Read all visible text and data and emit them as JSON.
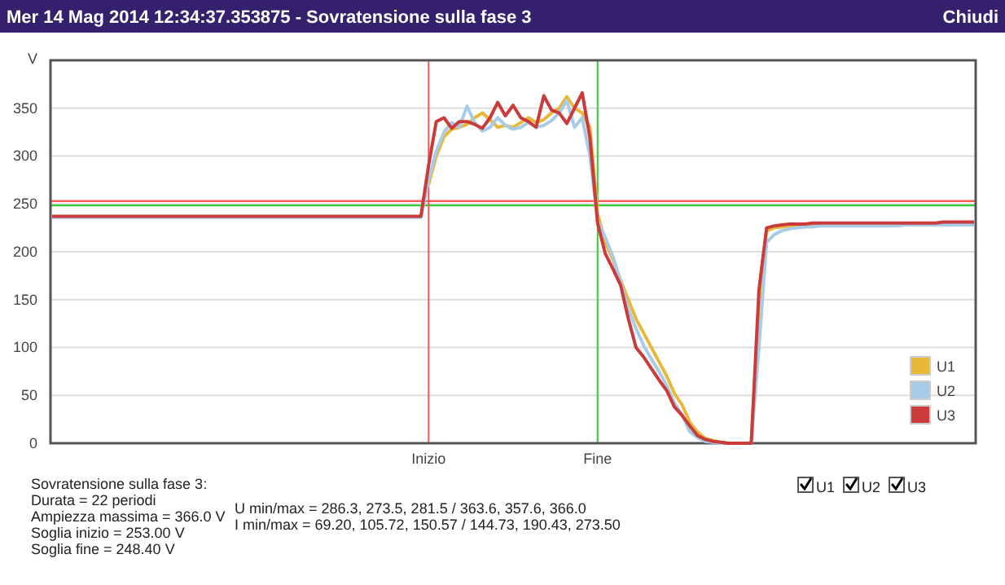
{
  "chart_data": {
    "type": "line",
    "title": "Mer 14 Mag 2014 12:34:37.353875 - Sovratensione sulla fase 3",
    "ylabel": "V",
    "categories": [
      null,
      null,
      null,
      null,
      null,
      null,
      null,
      null,
      null,
      null,
      null,
      null,
      null,
      null,
      null,
      null,
      null,
      null,
      null,
      null,
      null,
      null,
      null,
      null,
      null,
      null,
      null,
      null,
      null,
      null,
      null,
      null,
      null,
      null,
      null,
      null,
      null,
      null,
      null,
      null,
      null,
      null,
      null,
      null,
      null,
      null,
      null,
      null,
      null,
      "Inizio",
      null,
      null,
      null,
      null,
      null,
      null,
      null,
      null,
      null,
      null,
      null,
      null,
      null,
      null,
      null,
      null,
      null,
      null,
      null,
      null,
      null,
      "Fine",
      null,
      null,
      null,
      null,
      null,
      null,
      null,
      null,
      null,
      null,
      null,
      null,
      null,
      null,
      null,
      null,
      null,
      null,
      null,
      null,
      null,
      null,
      null,
      null,
      null,
      null,
      null,
      null,
      null,
      null,
      null,
      null,
      null,
      null,
      null,
      null,
      null,
      null,
      null,
      null,
      null,
      null,
      null,
      null,
      null,
      null,
      null,
      null,
      null
    ],
    "ylim": [
      0,
      400
    ],
    "yticks": [
      0,
      50,
      100,
      150,
      200,
      250,
      300,
      350
    ],
    "grid": "y",
    "legend": "bottom right",
    "marker": "none",
    "line_style": "solid",
    "ref_lines": [
      {
        "axis": "y",
        "value": 253,
        "color": "#ff5a5a"
      },
      {
        "axis": "y",
        "value": 248.4,
        "color": "#33cc33"
      },
      {
        "axis": "x",
        "value": "Inizio",
        "color": "#ff5a5a"
      },
      {
        "axis": "x",
        "value": "Fine",
        "color": "#33cc33"
      }
    ],
    "series": [
      {
        "name": "U1",
        "color": "#e8b83a",
        "values": [
          null,
          null,
          null,
          null,
          null,
          null,
          null,
          null,
          null,
          null,
          null,
          null,
          null,
          null,
          null,
          null,
          null,
          null,
          null,
          null,
          null,
          null,
          null,
          null,
          null,
          null,
          null,
          null,
          null,
          null,
          null,
          null,
          null,
          null,
          null,
          null,
          null,
          null,
          null,
          null,
          null,
          null,
          null,
          null,
          null,
          null,
          null,
          null,
          null,
          270,
          300,
          320,
          328,
          330,
          333,
          340,
          345,
          338,
          330,
          332,
          330,
          335,
          340,
          335,
          338,
          345,
          350,
          362,
          350,
          345,
          330,
          240,
          210,
          192,
          170,
          150,
          130,
          115,
          100,
          85,
          70,
          52,
          40,
          22,
          12,
          5,
          3,
          1,
          0,
          0,
          0,
          0,
          140,
          222,
          225,
          226,
          227,
          228,
          228,
          229,
          229,
          null,
          null,
          null,
          null,
          null,
          null,
          null,
          null,
          null,
          null,
          null,
          null,
          null,
          null,
          null,
          null,
          null,
          null,
          null,
          null
        ]
      },
      {
        "name": "U2",
        "color": "#a8cbe8",
        "values": [
          236,
          236,
          236,
          236,
          236,
          236,
          236,
          236,
          236,
          236,
          236,
          236,
          236,
          236,
          236,
          236,
          236,
          236,
          236,
          236,
          236,
          236,
          236,
          236,
          236,
          236,
          236,
          236,
          236,
          236,
          236,
          236,
          236,
          236,
          236,
          236,
          236,
          236,
          236,
          236,
          236,
          236,
          236,
          236,
          236,
          236,
          236,
          236,
          236,
          275,
          305,
          325,
          335,
          330,
          352,
          335,
          326,
          330,
          340,
          332,
          328,
          330,
          335,
          330,
          332,
          337,
          345,
          358,
          330,
          340,
          300,
          232,
          215,
          195,
          168,
          140,
          120,
          102,
          88,
          75,
          60,
          42,
          30,
          12,
          6,
          2,
          1,
          0,
          0,
          0,
          0,
          0,
          100,
          210,
          218,
          222,
          224,
          225,
          226,
          226,
          227,
          227,
          227,
          227,
          227,
          227,
          227,
          227,
          227,
          227,
          227,
          228,
          228,
          228,
          228,
          228,
          228,
          228,
          228,
          228,
          228
        ]
      },
      {
        "name": "U3",
        "color": "#cc3b3b",
        "values": [
          237,
          237,
          237,
          237,
          237,
          237,
          237,
          237,
          237,
          237,
          237,
          237,
          237,
          237,
          237,
          237,
          237,
          237,
          237,
          237,
          237,
          237,
          237,
          237,
          237,
          237,
          237,
          237,
          237,
          237,
          237,
          237,
          237,
          237,
          237,
          237,
          237,
          237,
          237,
          237,
          237,
          237,
          237,
          237,
          237,
          237,
          237,
          237,
          237,
          290,
          336,
          340,
          329,
          336,
          336,
          333,
          329,
          340,
          356,
          342,
          353,
          340,
          336,
          330,
          363,
          348,
          345,
          334,
          350,
          366,
          319,
          230,
          198,
          182,
          165,
          130,
          100,
          90,
          78,
          66,
          55,
          38,
          29,
          18,
          8,
          4,
          2,
          1,
          0,
          0,
          0,
          0,
          160,
          225,
          227,
          228,
          229,
          229,
          229,
          230,
          230,
          230,
          230,
          230,
          230,
          230,
          230,
          230,
          230,
          230,
          230,
          230,
          230,
          230,
          230,
          230,
          231,
          231,
          231,
          231,
          231
        ]
      }
    ],
    "annotations": [
      "Chiudi",
      "Sovratensione sulla fase 3:",
      "Durata = 22 periodi",
      "Ampiezza massima = 366.0 V",
      "Soglia inizio = 253.00 V",
      "Soglia fine = 248.40 V",
      "U min/max = 286.3, 273.5, 281.5 / 363.6, 357.6, 366.0",
      "I min/max = 69.20, 105.72, 150.57 / 144.73, 190.43, 273.50"
    ]
  }
}
